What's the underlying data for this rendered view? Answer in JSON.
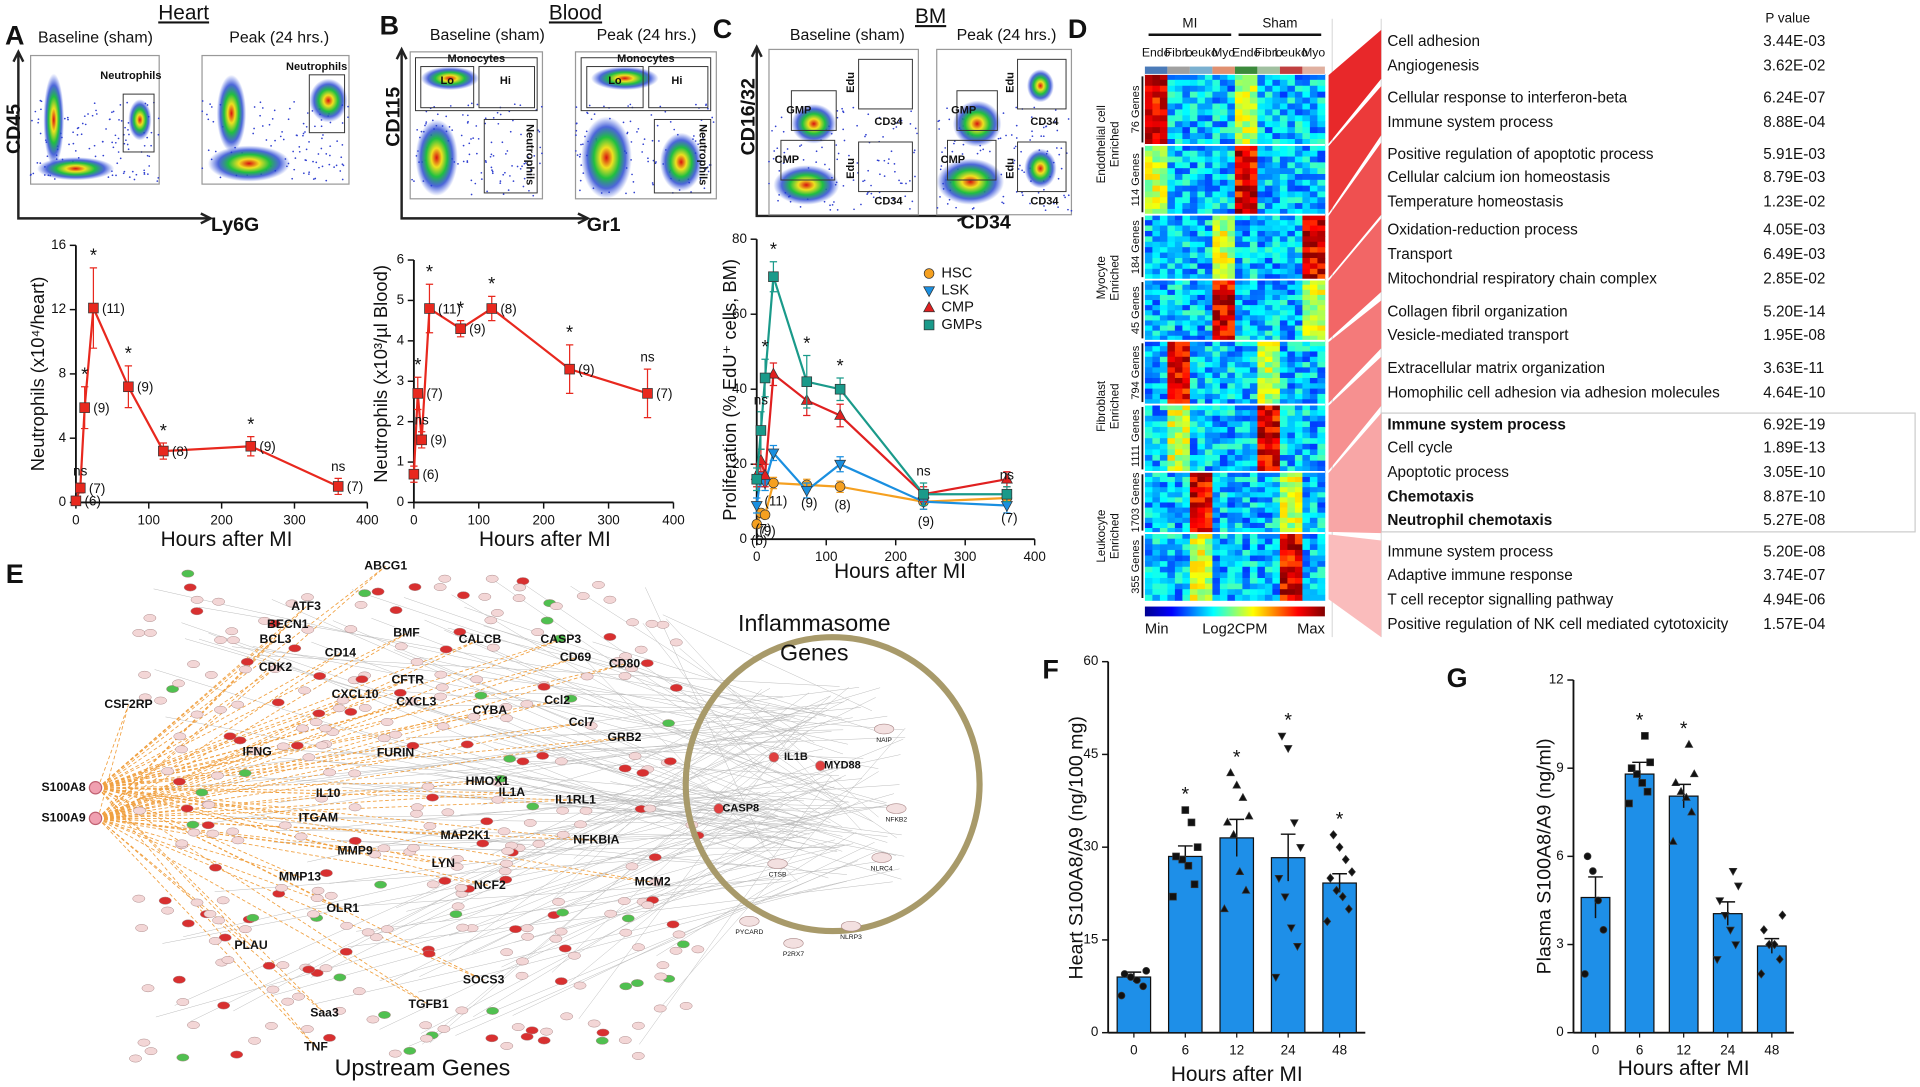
{
  "panels": [
    "A",
    "B",
    "C",
    "D",
    "E",
    "F",
    "G"
  ],
  "flow": {
    "A": {
      "x_axis": "Ly6G",
      "y_axis": "CD45",
      "plots": [
        {
          "title": "Baseline (sham)",
          "gates": [
            "Neutrophils"
          ]
        },
        {
          "title": "Peak (24 hrs.)",
          "gates": [
            "Neutrophils"
          ]
        }
      ]
    },
    "B": {
      "x_axis": "Gr1",
      "y_axis": "CD115",
      "plots": [
        {
          "title": "Baseline (sham)",
          "gates": [
            "Monocytes",
            "Lo",
            "Hi",
            "Neutrophils"
          ]
        },
        {
          "title": "Peak (24 hrs.)",
          "gates": [
            "Monocytes",
            "Lo",
            "Hi",
            "Neutrophils"
          ]
        }
      ]
    },
    "C": {
      "x_axis": "CD34",
      "y_axis": "CD16/32",
      "plots": [
        {
          "title": "Baseline (sham)",
          "gates": [
            "GMP",
            "CMP",
            "Edu",
            "CD34",
            "Edu",
            "CD34"
          ]
        },
        {
          "title": "Peak (24 hrs.)",
          "gates": [
            "GMP",
            "CMP",
            "Edu",
            "CD34",
            "Edu",
            "CD34"
          ]
        }
      ]
    }
  },
  "chart_data": [
    {
      "panel": "A",
      "type": "line",
      "title": "Heart",
      "xlabel": "Hours after MI",
      "ylabel": "Neutrophils (x10⁴/heart)",
      "x": [
        0,
        6,
        12,
        24,
        72,
        120,
        240,
        360
      ],
      "xlim": [
        0,
        400
      ],
      "xticks": [
        0,
        100,
        200,
        300,
        400
      ],
      "ylim": [
        0,
        16
      ],
      "yticks": [
        0,
        4,
        8,
        12,
        16
      ],
      "series": [
        {
          "color": "#e8281e",
          "marker": "square",
          "values": [
            0.1,
            0.9,
            5.9,
            12.1,
            7.2,
            3.2,
            3.5,
            1.0
          ],
          "errors": [
            0.1,
            0.3,
            1.3,
            2.5,
            1.3,
            0.5,
            0.6,
            0.5
          ]
        }
      ],
      "n_labels": [
        "(6)",
        "(7)",
        "(9)",
        "(11)",
        "(9)",
        "(8)",
        "(9)",
        "(7)"
      ],
      "sig_labels": [
        null,
        "ns",
        "*",
        "*",
        "*",
        "*",
        "*",
        "ns"
      ]
    },
    {
      "panel": "B",
      "type": "line",
      "title": "Blood",
      "xlabel": "Hours after MI",
      "ylabel": "Neutrophils (x10³/µl Blood)",
      "x": [
        0,
        6,
        12,
        24,
        72,
        120,
        240,
        360
      ],
      "xlim": [
        0,
        400
      ],
      "xticks": [
        0,
        100,
        200,
        300,
        400
      ],
      "ylim": [
        0,
        6
      ],
      "yticks": [
        0,
        1,
        2,
        3,
        4,
        5,
        6
      ],
      "series": [
        {
          "color": "#e8281e",
          "marker": "square",
          "values": [
            0.7,
            2.7,
            1.55,
            4.8,
            4.3,
            4.8,
            3.3,
            2.7
          ],
          "errors": [
            0.2,
            0.4,
            0.2,
            0.6,
            0.2,
            0.3,
            0.6,
            0.6
          ]
        }
      ],
      "n_labels": [
        "(6)",
        "(7)",
        "(9)",
        "(11)",
        "(9)",
        "(8)",
        "(9)",
        "(7)"
      ],
      "sig_labels": [
        null,
        "*",
        "ns",
        "*",
        "*",
        "*",
        "*",
        "ns"
      ]
    },
    {
      "panel": "C",
      "type": "line",
      "title": "BM",
      "xlabel": "Hours after MI",
      "ylabel": "Proliferation (% EdU⁺ cells, BM)",
      "x": [
        0,
        6,
        12,
        24,
        72,
        120,
        240,
        360
      ],
      "xlim": [
        0,
        400
      ],
      "xticks": [
        0,
        100,
        200,
        300,
        400
      ],
      "ylim": [
        0,
        80
      ],
      "yticks": [
        0,
        20,
        40,
        60,
        80
      ],
      "series": [
        {
          "name": "HSC",
          "color": "#f5a020",
          "marker": "circle",
          "values": [
            4,
            7,
            6.5,
            15,
            14.5,
            14,
            10,
            11
          ],
          "errors": [
            1,
            1,
            1,
            1.5,
            1.5,
            1.5,
            2,
            2
          ]
        },
        {
          "name": "LSK",
          "color": "#1a8fe0",
          "marker": "tri-down",
          "values": [
            9,
            17,
            15,
            23,
            13,
            20,
            10,
            9
          ],
          "errors": [
            2,
            3,
            2,
            2,
            2,
            2,
            2,
            2
          ]
        },
        {
          "name": "CMP",
          "color": "#e02020",
          "marker": "tri-up",
          "values": [
            17,
            21,
            17,
            44,
            37,
            33,
            12,
            16
          ],
          "errors": [
            3,
            3,
            3,
            3,
            4,
            3,
            2,
            2
          ]
        },
        {
          "name": "GMPs",
          "color": "#1a9a8a",
          "marker": "square",
          "values": [
            16,
            29,
            43,
            70,
            42,
            40,
            12,
            12
          ],
          "errors": [
            3,
            5,
            5,
            4,
            7,
            3,
            3,
            2
          ]
        }
      ],
      "legend": "top-right",
      "n_labels": [
        "(6)",
        "(7)",
        "(9)",
        "(11)",
        "(9)",
        "(8)",
        "(9)",
        "(7)"
      ],
      "sig_labels": [
        null,
        "ns",
        "*",
        "*",
        "*",
        "*",
        "ns",
        "ns"
      ]
    },
    {
      "panel": "F",
      "type": "bar",
      "xlabel": "Hours after MI",
      "ylabel": "Heart S100A8/A9 (ng/100 mg)",
      "color": "#1e8fe8",
      "categories": [
        "0",
        "6",
        "12",
        "24",
        "48"
      ],
      "values": [
        9,
        28.5,
        31.5,
        28.3,
        24.2
      ],
      "errors": [
        0.8,
        1.7,
        3,
        3.8,
        1.5
      ],
      "points": [
        [
          6,
          7.5,
          8.5,
          9,
          9.5,
          10
        ],
        [
          22,
          24,
          27,
          28,
          28.5,
          30,
          34,
          36
        ],
        [
          20,
          23,
          26,
          32,
          34,
          35,
          38,
          40,
          42
        ],
        [
          9,
          14,
          17,
          22,
          25,
          30,
          34,
          46,
          48
        ],
        [
          18,
          20,
          22,
          23,
          25,
          26,
          28,
          30,
          32
        ]
      ],
      "sig_labels": [
        null,
        "*",
        "*",
        "*",
        "*"
      ],
      "ylim": [
        0,
        60
      ],
      "yticks": [
        0,
        15,
        30,
        45,
        60
      ]
    },
    {
      "panel": "G",
      "type": "bar",
      "xlabel": "Hours after MI",
      "ylabel": "Plasma S100A8/A9 (ng/ml)",
      "color": "#1e8fe8",
      "categories": [
        "0",
        "6",
        "12",
        "24",
        "48"
      ],
      "values": [
        4.6,
        8.8,
        8.05,
        4.05,
        2.95
      ],
      "errors": [
        0.7,
        0.4,
        0.4,
        0.4,
        0.25
      ],
      "points": [
        [
          2,
          3.5,
          4.5,
          5.5,
          6
        ],
        [
          7.8,
          8.2,
          8.5,
          8.8,
          9,
          9.2,
          10.1
        ],
        [
          6.5,
          7.5,
          8,
          8.2,
          8.5,
          8.8,
          9.8
        ],
        [
          2.5,
          3,
          3.5,
          4,
          4.5,
          5,
          5.5
        ],
        [
          2,
          2.5,
          3,
          3,
          3.5,
          4
        ]
      ],
      "sig_labels": [
        null,
        "*",
        "*",
        null,
        null
      ],
      "ylim": [
        0,
        12
      ],
      "yticks": [
        0,
        3,
        6,
        9,
        12
      ]
    }
  ],
  "heatmap": {
    "column_groups": [
      "MI",
      "Sham"
    ],
    "cell_types": [
      "Endo",
      "Fibro",
      "Leuko",
      "Myo"
    ],
    "blocks": [
      "76 Genes",
      "114 Genes",
      "184 Genes",
      "45 Genes",
      "794 Genes",
      "1111 Genes",
      "1703 Genes",
      "355 Genes"
    ],
    "groups": [
      [
        "Endothelial cell",
        "Enriched"
      ],
      [
        "Myocyte",
        "Enriched"
      ],
      [
        "Fibroblast",
        "Enriched"
      ],
      [
        "Leukocyte",
        "Enriched"
      ]
    ],
    "scale": [
      "Min",
      "Log2CPM",
      "Max"
    ]
  },
  "go_table": {
    "p_header": "P value",
    "rows": [
      {
        "term": "Cell adhesion",
        "p": "3.44E-03"
      },
      {
        "term": "Angiogenesis",
        "p": "3.62E-02"
      },
      {
        "term": "Cellular response to interferon-beta",
        "p": "6.24E-07"
      },
      {
        "term": "Immune system process",
        "p": "8.88E-04"
      },
      {
        "term": "Positive regulation of apoptotic process",
        "p": "5.91E-03"
      },
      {
        "term": "Cellular calcium ion homeostasis",
        "p": "8.79E-03"
      },
      {
        "term": "Temperature homeostasis",
        "p": "1.23E-02"
      },
      {
        "term": "Oxidation-reduction process",
        "p": "4.05E-03"
      },
      {
        "term": "Transport",
        "p": "6.49E-03"
      },
      {
        "term": "Mitochondrial respiratory chain complex",
        "p": "2.85E-02"
      },
      {
        "term": "Collagen fibril organization",
        "p": "5.20E-14"
      },
      {
        "term": "Vesicle-mediated transport",
        "p": "1.95E-08"
      },
      {
        "term": "Extracellular matrix organization",
        "p": "3.63E-11"
      },
      {
        "term": "Homophilic cell adhesion via adhesion molecules",
        "p": "4.64E-10"
      },
      {
        "term": "Immune system process",
        "p": "6.92E-19",
        "bold": true
      },
      {
        "term": "Cell cycle",
        "p": "1.89E-13"
      },
      {
        "term": "Apoptotic process",
        "p": "3.05E-10"
      },
      {
        "term": "Chemotaxis",
        "p": "8.87E-10",
        "bold": true
      },
      {
        "term": "Neutrophil chemotaxis",
        "p": "5.27E-08",
        "bold": true
      },
      {
        "term": "Immune system process",
        "p": "5.20E-08"
      },
      {
        "term": "Adaptive immune response",
        "p": "3.74E-07"
      },
      {
        "term": "T cell receptor signalling pathway",
        "p": "4.94E-06"
      },
      {
        "term": "Positive regulation of NK cell mediated cytotoxicity",
        "p": "1.57E-04"
      }
    ]
  },
  "network": {
    "sources": [
      "S100A8",
      "S100A9"
    ],
    "inflammasome_title": [
      "Inflammasome",
      "Genes"
    ],
    "upstream_title": "Upstream Genes",
    "genes": [
      "ABCG1",
      "ATF3",
      "BECN1",
      "BMF",
      "BCL3",
      "CALCB",
      "CASP3",
      "CD69",
      "CD80",
      "CD14",
      "CDK2",
      "CFTR",
      "CXCL10",
      "CXCL3",
      "CSF2RP",
      "CYBA",
      "Ccl2",
      "Ccl7",
      "IFNG",
      "FURIN",
      "GRB2",
      "HMOX1",
      "IL10",
      "IL1A",
      "IL1RL1",
      "ITGAM",
      "MMP9",
      "MAP2K1",
      "LYN",
      "NFKBIA",
      "MMP13",
      "NCF2",
      "MCM2",
      "OLR1",
      "PLAU",
      "SOCS3",
      "Saa3",
      "TGFB1",
      "TNF"
    ],
    "inflammasome_genes": [
      "IL1B",
      "MYD88",
      "CASP8",
      "CTSB",
      "NAIP",
      "NFKB2",
      "NLRC4",
      "NLRP3",
      "P2RX7",
      "PYCARD"
    ]
  }
}
